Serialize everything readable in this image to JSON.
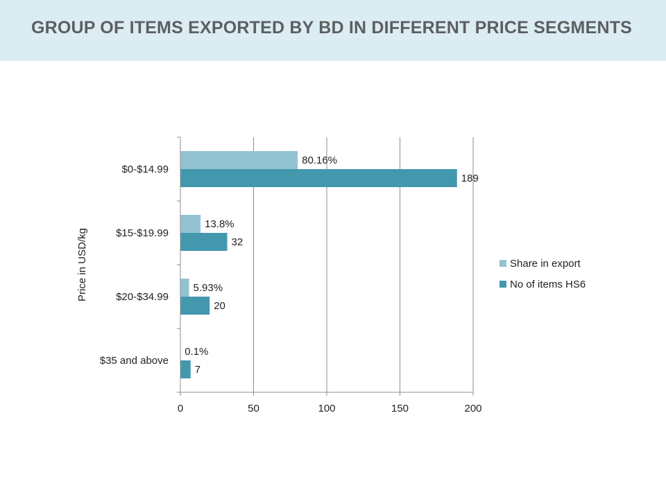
{
  "slide": {
    "title": "GROUP OF ITEMS EXPORTED BY BD IN DIFFERENT PRICE SEGMENTS"
  },
  "colors": {
    "title_band": "#dbecf2",
    "title_text": "#5b5f61",
    "share_series": "#93c3d3",
    "items_series": "#4398ae"
  },
  "chart_data": {
    "type": "bar",
    "orientation": "horizontal",
    "title": "",
    "ylabel": "Price in USD/kg",
    "xlabel": "",
    "categories": [
      "$0-$14.99",
      "$15-$19.99",
      "$20-$34.99",
      "$35 and above"
    ],
    "series": [
      {
        "name": "Share in export",
        "values": [
          80.16,
          13.8,
          5.93,
          0.1
        ],
        "labels": [
          "80.16%",
          "13.8%",
          "5.93%",
          "0.1%"
        ],
        "color": "#93c3d3"
      },
      {
        "name": "No of items HS6",
        "values": [
          189,
          32,
          20,
          7
        ],
        "labels": [
          "189",
          "32",
          "20",
          "7"
        ],
        "color": "#4398ae"
      }
    ],
    "xlim": [
      0,
      200
    ],
    "xticks": [
      "0",
      "50",
      "100",
      "150",
      "200"
    ],
    "grid": "vertical",
    "legend": "right"
  }
}
